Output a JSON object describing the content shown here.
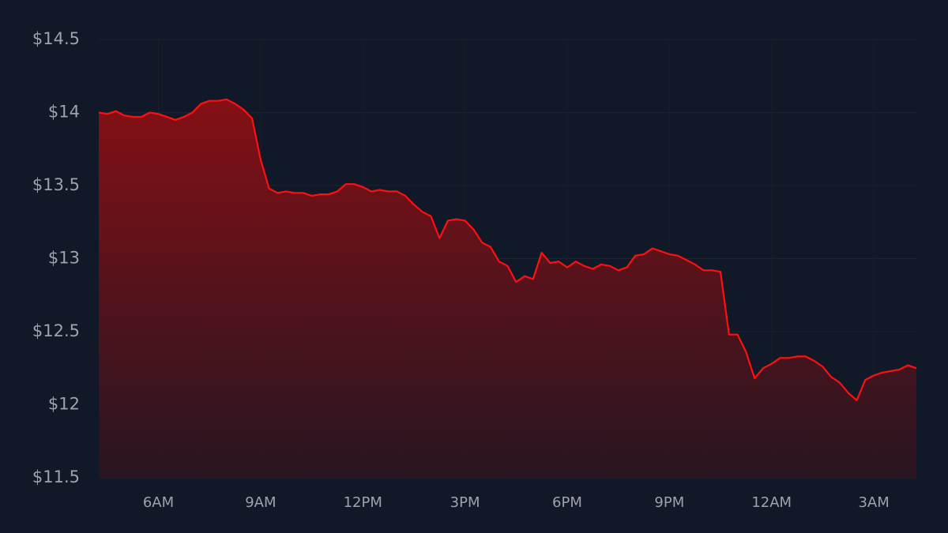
{
  "chart_data": {
    "type": "area",
    "categories": [
      null,
      null,
      null,
      null,
      null,
      null,
      null,
      "6AM",
      null,
      null,
      null,
      null,
      null,
      null,
      null,
      null,
      null,
      null,
      null,
      "9AM",
      null,
      null,
      null,
      null,
      null,
      null,
      null,
      null,
      null,
      null,
      null,
      "12PM",
      null,
      null,
      null,
      null,
      null,
      null,
      null,
      null,
      null,
      null,
      null,
      "3PM",
      null,
      null,
      null,
      null,
      null,
      null,
      null,
      null,
      null,
      null,
      null,
      "6PM",
      null,
      null,
      null,
      null,
      null,
      null,
      null,
      null,
      null,
      null,
      null,
      "9PM",
      null,
      null,
      null,
      null,
      null,
      null,
      null,
      null,
      null,
      null,
      null,
      "12AM",
      null,
      null,
      null,
      null,
      null,
      null,
      null,
      null,
      null,
      null,
      null,
      "3AM",
      null,
      null,
      null,
      null,
      null
    ],
    "values": [
      14.0,
      13.99,
      14.01,
      13.98,
      13.97,
      13.97,
      14.0,
      13.99,
      13.97,
      13.95,
      13.97,
      14.0,
      14.06,
      14.08,
      14.08,
      14.09,
      14.06,
      14.02,
      13.96,
      13.68,
      13.48,
      13.45,
      13.46,
      13.45,
      13.45,
      13.43,
      13.44,
      13.44,
      13.46,
      13.51,
      13.51,
      13.49,
      13.46,
      13.47,
      13.46,
      13.46,
      13.43,
      13.37,
      13.32,
      13.29,
      13.14,
      13.26,
      13.27,
      13.26,
      13.2,
      13.11,
      13.08,
      12.98,
      12.95,
      12.84,
      12.88,
      12.86,
      13.04,
      12.97,
      12.98,
      12.94,
      12.98,
      12.95,
      12.93,
      12.96,
      12.95,
      12.92,
      12.94,
      13.02,
      13.03,
      13.07,
      13.05,
      13.03,
      13.02,
      12.99,
      12.96,
      12.92,
      12.92,
      12.91,
      12.48,
      12.48,
      12.36,
      12.18,
      12.25,
      12.28,
      12.32,
      12.32,
      12.33,
      12.33,
      12.3,
      12.26,
      12.19,
      12.15,
      12.08,
      12.03,
      12.17,
      12.2,
      12.22,
      12.23,
      12.24,
      12.27,
      12.25
    ],
    "color": "#ff1010",
    "ylim": [
      11.5,
      14.5
    ],
    "yticks": [
      {
        "value": 11.5,
        "label": "$11.5"
      },
      {
        "value": 12,
        "label": "$12"
      },
      {
        "value": 12.5,
        "label": "$12.5"
      },
      {
        "value": 13,
        "label": "$13"
      },
      {
        "value": 13.5,
        "label": "$13.5"
      },
      {
        "value": 14,
        "label": "$14"
      },
      {
        "value": 14.5,
        "label": "$14.5"
      }
    ],
    "grid": true
  }
}
